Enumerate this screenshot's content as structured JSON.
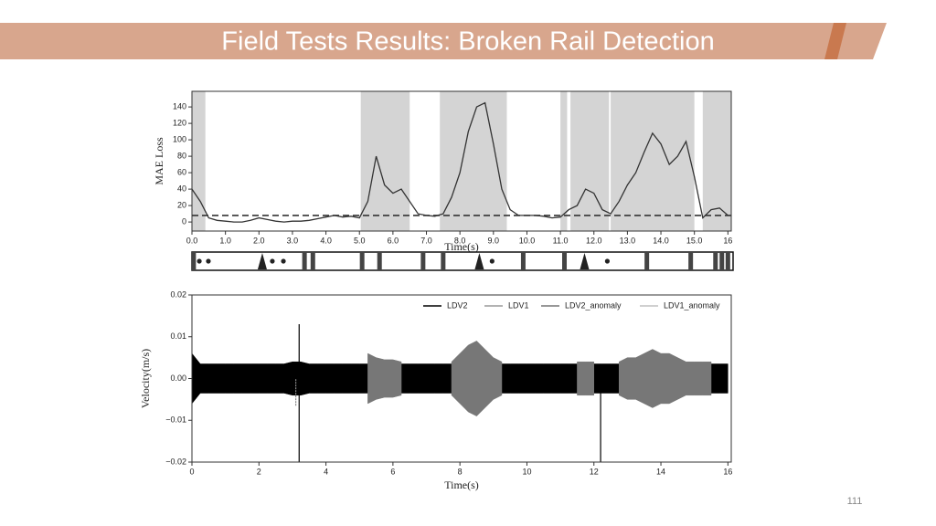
{
  "slide": {
    "title": "Field Tests Results: Broken Rail Detection",
    "page_number": "111"
  },
  "chart_data": [
    {
      "type": "line",
      "ylabel": "MAE Loss",
      "xlabel": "Time(s)",
      "xlim": [
        0,
        16.1
      ],
      "ylim": [
        -11,
        159
      ],
      "xticks": [
        {
          "value": 0,
          "label": "0.0"
        },
        {
          "value": 1,
          "label": "1.0"
        },
        {
          "value": 2,
          "label": "2.0"
        },
        {
          "value": 3,
          "label": "3.0"
        },
        {
          "value": 4,
          "label": "4.0"
        },
        {
          "value": 5,
          "label": "5.0"
        },
        {
          "value": 6,
          "label": "6.0"
        },
        {
          "value": 7,
          "label": "7.0"
        },
        {
          "value": 8,
          "label": "8.0"
        },
        {
          "value": 9,
          "label": "9.0"
        },
        {
          "value": 10,
          "label": "10.0"
        },
        {
          "value": 11,
          "label": "11.0"
        },
        {
          "value": 12,
          "label": "12.0"
        },
        {
          "value": 13,
          "label": "13.0"
        },
        {
          "value": 14,
          "label": "14.0"
        },
        {
          "value": 15,
          "label": "15.0"
        },
        16
      ],
      "yticks": [
        0,
        20,
        40,
        60,
        80,
        100,
        120,
        140
      ],
      "threshold": 8,
      "anomaly_regions": [
        [
          0,
          0.4
        ],
        [
          5.04,
          6.5
        ],
        [
          7.4,
          9.4
        ],
        [
          11.0,
          11.2
        ],
        [
          11.3,
          12.45
        ],
        [
          12.5,
          15.0
        ],
        [
          15.25,
          16.1
        ]
      ],
      "region_color": "#d4d4d4",
      "x": [
        0,
        0.25,
        0.5,
        0.75,
        1,
        1.25,
        1.5,
        1.75,
        2,
        2.25,
        2.5,
        2.75,
        3,
        3.25,
        3.5,
        3.75,
        4,
        4.25,
        4.5,
        4.75,
        5,
        5.25,
        5.5,
        5.75,
        6,
        6.25,
        6.5,
        6.75,
        7,
        7.25,
        7.5,
        7.75,
        8,
        8.25,
        8.5,
        8.75,
        9,
        9.25,
        9.5,
        9.75,
        10,
        10.25,
        10.5,
        10.75,
        11,
        11.25,
        11.5,
        11.75,
        12,
        12.25,
        12.5,
        12.75,
        13,
        13.25,
        13.5,
        13.75,
        14,
        14.25,
        14.5,
        14.75,
        15,
        15.25,
        15.5,
        15.75,
        16
      ],
      "values": [
        40,
        25,
        5,
        2,
        1,
        0,
        0,
        2,
        5,
        3,
        1,
        0,
        1,
        1,
        2,
        4,
        6,
        8,
        6,
        7,
        5,
        25,
        80,
        45,
        35,
        40,
        25,
        10,
        8,
        7,
        10,
        30,
        60,
        110,
        140,
        145,
        95,
        40,
        15,
        8,
        8,
        8,
        7,
        5,
        6,
        15,
        20,
        40,
        35,
        15,
        10,
        25,
        45,
        60,
        85,
        108,
        95,
        70,
        80,
        98,
        55,
        5,
        15,
        17,
        8
      ],
      "color": "#333333",
      "events": [
        {
          "x": 0.05,
          "shape": "bar"
        },
        {
          "x": 0.22,
          "shape": "dot"
        },
        {
          "x": 0.49,
          "shape": "dot"
        },
        {
          "x": 2.1,
          "shape": "triangle"
        },
        {
          "x": 2.4,
          "shape": "dot"
        },
        {
          "x": 2.73,
          "shape": "dot"
        },
        {
          "x": 3.36,
          "shape": "bar"
        },
        {
          "x": 3.61,
          "shape": "bar"
        },
        {
          "x": 5.08,
          "shape": "bar"
        },
        {
          "x": 5.6,
          "shape": "bar"
        },
        {
          "x": 6.9,
          "shape": "bar"
        },
        {
          "x": 7.5,
          "shape": "bar"
        },
        {
          "x": 8.58,
          "shape": "triangle"
        },
        {
          "x": 8.96,
          "shape": "dot"
        },
        {
          "x": 9.89,
          "shape": "bar"
        },
        {
          "x": 11.12,
          "shape": "bar"
        },
        {
          "x": 11.72,
          "shape": "triangle"
        },
        {
          "x": 12.4,
          "shape": "dot"
        },
        {
          "x": 13.58,
          "shape": "bar"
        },
        {
          "x": 14.89,
          "shape": "bar"
        },
        {
          "x": 15.63,
          "shape": "bar"
        },
        {
          "x": 15.82,
          "shape": "bar"
        },
        {
          "x": 16.0,
          "shape": "bar"
        }
      ]
    },
    {
      "type": "area",
      "ylabel": "Velocity(m/s)",
      "xlabel": "Time(s)",
      "xlim": [
        0,
        16.1
      ],
      "ylim": [
        -0.02,
        0.02
      ],
      "xticks": [
        0,
        2,
        4,
        6,
        8,
        10,
        12,
        14,
        16
      ],
      "yticks": [
        {
          "value": -0.02,
          "label": "−0.02"
        },
        {
          "value": -0.01,
          "label": "−0.01"
        },
        {
          "value": 0,
          "label": "0.00"
        },
        {
          "value": 0.01,
          "label": "0.01"
        },
        {
          "value": 0.02,
          "label": "0.02"
        }
      ],
      "x": [
        0,
        0.25,
        0.5,
        0.75,
        1,
        1.25,
        1.5,
        1.75,
        2,
        2.25,
        2.5,
        2.75,
        3,
        3.25,
        3.5,
        3.75,
        4,
        4.25,
        4.5,
        4.75,
        5,
        5.25,
        5.5,
        5.75,
        6,
        6.25,
        6.5,
        6.75,
        7,
        7.25,
        7.5,
        7.75,
        8,
        8.25,
        8.5,
        8.75,
        9,
        9.25,
        9.5,
        9.75,
        10,
        10.25,
        10.5,
        10.75,
        11,
        11.25,
        11.5,
        11.75,
        12,
        12.25,
        12.5,
        12.75,
        13,
        13.25,
        13.5,
        13.75,
        14,
        14.25,
        14.5,
        14.75,
        15,
        15.25,
        15.5,
        15.75,
        16
      ],
      "series": [
        {
          "name": "LDV2",
          "color": "#000000",
          "values": [
            0.006,
            0.0035,
            0.0035,
            0.0035,
            0.0035,
            0.0035,
            0.0035,
            0.0035,
            0.0035,
            0.0035,
            0.0035,
            0.0035,
            0.004,
            0.004,
            0.0035,
            0.0035,
            0.0035,
            0.0035,
            0.0035,
            0.0035,
            0.0035,
            0.0035,
            0.0035,
            0.0035,
            0.0035,
            0.0035,
            0.0035,
            0.0035,
            0.0035,
            0.0035,
            0.0035,
            0.0035,
            0.0035,
            0.0035,
            0.0035,
            0.0035,
            0.0035,
            0.0035,
            0.0035,
            0.0035,
            0.0035,
            0.0035,
            0.0035,
            0.0035,
            0.0035,
            0.0035,
            0.0035,
            0.0035,
            0.0035,
            0.0035,
            0.0035,
            0.0035,
            0.0035,
            0.0035,
            0.0035,
            0.0035,
            0.0035,
            0.0035,
            0.0035,
            0.0035,
            0.0035,
            0.0035,
            0.0035,
            0.0035,
            0.0035
          ]
        },
        {
          "name": "LDV1",
          "color": "#9a9a9a"
        },
        {
          "name": "LDV2_anomaly",
          "color": "#777777",
          "values": [
            null,
            null,
            null,
            null,
            null,
            null,
            null,
            null,
            null,
            null,
            null,
            null,
            null,
            null,
            null,
            null,
            null,
            null,
            null,
            null,
            null,
            0.006,
            0.005,
            0.0045,
            0.0045,
            0.004,
            null,
            null,
            null,
            null,
            null,
            0.004,
            0.006,
            0.008,
            0.009,
            0.007,
            0.005,
            0.004,
            null,
            null,
            null,
            null,
            null,
            null,
            null,
            null,
            0.004,
            0.004,
            0.004,
            null,
            null,
            0.004,
            0.005,
            0.005,
            0.006,
            0.007,
            0.006,
            0.006,
            0.005,
            0.004,
            0.004,
            0.004,
            0.004,
            null,
            null
          ]
        },
        {
          "name": "LDV1_anomaly",
          "color": "#c0c0c0"
        }
      ],
      "spikes": [
        {
          "x": 3.2,
          "low": -0.02,
          "high": 0.013,
          "color": "#000000"
        },
        {
          "x": 3.1,
          "low": -0.0065,
          "high": 0,
          "color": "#888888"
        },
        {
          "x": 12.2,
          "low": -0.02,
          "high": 0.003,
          "color": "#000000"
        }
      ]
    }
  ]
}
